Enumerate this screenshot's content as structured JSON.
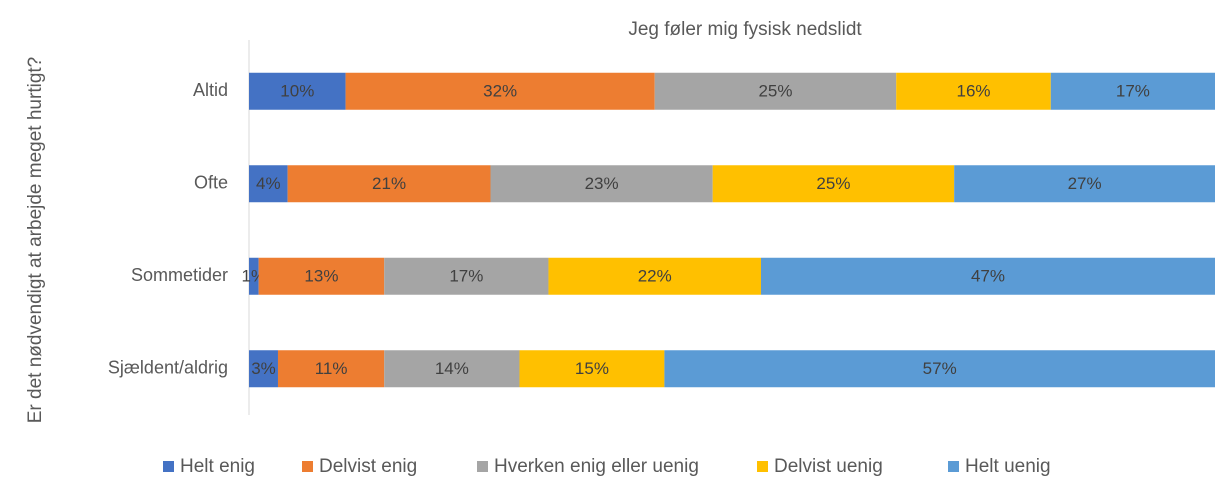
{
  "chart_data": {
    "type": "stacked-bar-horizontal",
    "title": "Jeg føler mig fysisk nedslidt",
    "ylabel": "Er det nødvendigt at arbejde meget hurtigt?",
    "categories": [
      "Altid",
      "Ofte",
      "Sommetider",
      "Sjældent/aldrig"
    ],
    "xlim": [
      0,
      100
    ],
    "legend": "bottom",
    "series": [
      {
        "name": "Helt enig",
        "color": "#4472c4",
        "values": [
          10,
          4,
          1,
          3
        ],
        "value_labels": [
          "10%",
          "4%",
          "1%",
          "3%"
        ]
      },
      {
        "name": "Delvist enig",
        "color": "#ed7d31",
        "values": [
          32,
          21,
          13,
          11
        ],
        "value_labels": [
          "32%",
          "21%",
          "13%",
          "11%"
        ]
      },
      {
        "name": "Hverken enig eller uenig",
        "color": "#a5a5a5",
        "values": [
          25,
          23,
          17,
          14
        ],
        "value_labels": [
          "25%",
          "23%",
          "17%",
          "14%"
        ]
      },
      {
        "name": "Delvist uenig",
        "color": "#ffc000",
        "values": [
          16,
          25,
          22,
          15
        ],
        "value_labels": [
          "16%",
          "25%",
          "22%",
          "15%"
        ]
      },
      {
        "name": "Helt uenig",
        "color": "#5b9bd5",
        "values": [
          17,
          27,
          47,
          57
        ],
        "value_labels": [
          "17%",
          "27%",
          "47%",
          "57%"
        ]
      }
    ]
  }
}
